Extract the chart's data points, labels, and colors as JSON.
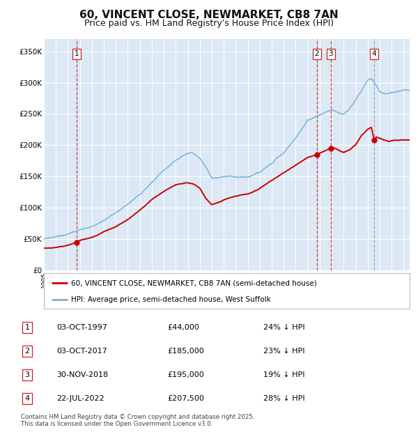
{
  "title": "60, VINCENT CLOSE, NEWMARKET, CB8 7AN",
  "subtitle": "Price paid vs. HM Land Registry's House Price Index (HPI)",
  "title_fontsize": 11,
  "subtitle_fontsize": 9,
  "background_color": "#dce9f5",
  "plot_bg_color": "#dce9f5",
  "hpi_color": "#7ab3d9",
  "price_color": "#cc0000",
  "transactions": [
    {
      "num": 1,
      "date_label": "03-OCT-1997",
      "x_year": 1997.75,
      "price": 44000,
      "pct": "24% ↓ HPI"
    },
    {
      "num": 2,
      "date_label": "03-OCT-2017",
      "x_year": 2017.75,
      "price": 185000,
      "pct": "23% ↓ HPI"
    },
    {
      "num": 3,
      "date_label": "30-NOV-2018",
      "x_year": 2018.92,
      "price": 195000,
      "pct": "19% ↓ HPI"
    },
    {
      "num": 4,
      "date_label": "22-JUL-2022",
      "x_year": 2022.55,
      "price": 207500,
      "pct": "28% ↓ HPI"
    }
  ],
  "legend_line1": "60, VINCENT CLOSE, NEWMARKET, CB8 7AN (semi-detached house)",
  "legend_line2": "HPI: Average price, semi-detached house, West Suffolk",
  "footer": "Contains HM Land Registry data © Crown copyright and database right 2025.\nThis data is licensed under the Open Government Licence v3.0.",
  "table_rows": [
    [
      "1",
      "03-OCT-1997",
      "£44,000",
      "24% ↓ HPI"
    ],
    [
      "2",
      "03-OCT-2017",
      "£185,000",
      "23% ↓ HPI"
    ],
    [
      "3",
      "30-NOV-2018",
      "£195,000",
      "19% ↓ HPI"
    ],
    [
      "4",
      "22-JUL-2022",
      "£207,500",
      "28% ↓ HPI"
    ]
  ],
  "ylim": [
    0,
    370000
  ],
  "xlim_start": 1995.0,
  "xlim_end": 2025.5,
  "hpi_key_years": [
    1995,
    1996,
    1997,
    1998,
    1999,
    2000,
    2001,
    2002,
    2003,
    2004,
    2005,
    2006,
    2007,
    2007.5,
    2008,
    2008.5,
    2009,
    2009.5,
    2010,
    2011,
    2012,
    2013,
    2014,
    2015,
    2016,
    2017,
    2018,
    2019,
    2019.5,
    2020,
    2020.5,
    2021,
    2021.5,
    2022,
    2022.3,
    2022.6,
    2023,
    2023.5,
    2024,
    2024.5,
    2025
  ],
  "hpi_key_vals": [
    50000,
    52000,
    56000,
    62000,
    68000,
    76000,
    88000,
    102000,
    118000,
    138000,
    155000,
    172000,
    184000,
    185000,
    178000,
    165000,
    148000,
    147000,
    150000,
    150000,
    148000,
    155000,
    168000,
    185000,
    210000,
    238000,
    244000,
    252000,
    248000,
    245000,
    255000,
    270000,
    285000,
    302000,
    305000,
    298000,
    285000,
    283000,
    285000,
    287000,
    288000
  ],
  "price_key_years": [
    1995,
    1996,
    1996.5,
    1997,
    1997.75,
    1998,
    1999,
    2000,
    2001,
    2002,
    2003,
    2004,
    2005,
    2006,
    2007,
    2007.5,
    2008,
    2008.5,
    2009,
    2009.5,
    2010,
    2011,
    2012,
    2013,
    2014,
    2015,
    2016,
    2017,
    2017.75,
    2018,
    2018.92,
    2019,
    2019.5,
    2020,
    2020.5,
    2021,
    2021.5,
    2022,
    2022.3,
    2022.55,
    2022.7,
    2023,
    2023.3,
    2023.8,
    2024,
    2024.5,
    2025
  ],
  "price_key_vals": [
    35000,
    36000,
    38000,
    40000,
    44000,
    47000,
    52000,
    60000,
    68000,
    80000,
    95000,
    112000,
    125000,
    136000,
    140000,
    138000,
    132000,
    115000,
    105000,
    108000,
    112000,
    118000,
    122000,
    130000,
    143000,
    155000,
    168000,
    180000,
    185000,
    188000,
    195000,
    196000,
    192000,
    188000,
    192000,
    200000,
    215000,
    225000,
    228000,
    207500,
    212000,
    210000,
    208000,
    205000,
    206000,
    207000,
    208000
  ]
}
